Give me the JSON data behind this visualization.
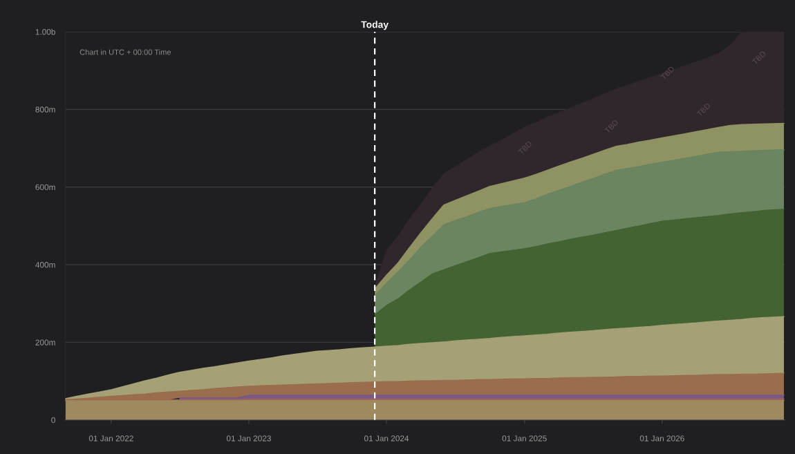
{
  "chart_data": {
    "type": "area",
    "stacked": true,
    "annotations": [
      "Chart in UTC + 00:00 Time",
      "TBD",
      "TBD",
      "TBD",
      "TBD",
      "TBD"
    ],
    "x": [
      "2021-09",
      "2021-10",
      "2021-11",
      "2021-12",
      "2022-01",
      "2022-02",
      "2022-03",
      "2022-04",
      "2022-05",
      "2022-06",
      "2022-07",
      "2022-08",
      "2022-09",
      "2022-10",
      "2022-11",
      "2022-12",
      "2023-01",
      "2023-02",
      "2023-03",
      "2023-04",
      "2023-05",
      "2023-06",
      "2023-07",
      "2023-08",
      "2023-09",
      "2023-10",
      "2023-11",
      "2023-12",
      "2024-01",
      "2024-02",
      "2024-03",
      "2024-04",
      "2024-05",
      "2024-06",
      "2024-07",
      "2024-08",
      "2024-09",
      "2024-10",
      "2024-11",
      "2024-12",
      "2025-01",
      "2025-02",
      "2025-03",
      "2025-04",
      "2025-05",
      "2025-06",
      "2025-07",
      "2025-08",
      "2025-09",
      "2025-10",
      "2025-11",
      "2025-12",
      "2026-01",
      "2026-02",
      "2026-03",
      "2026-04",
      "2026-05",
      "2026-06",
      "2026-07",
      "2026-08",
      "2026-09",
      "2026-10",
      "2026-11-20"
    ],
    "series": [
      {
        "color": "#9e8a5e",
        "values": [
          50000000.0,
          50000000.0,
          50000000.0,
          50000000.0,
          50000000.0,
          50000000.0,
          50000000.0,
          50000000.0,
          50000000.0,
          50000000.0,
          50000000.0,
          50000000.0,
          50000000.0,
          50000000.0,
          50000000.0,
          50000000.0,
          50000000.0,
          50000000.0,
          50000000.0,
          50000000.0,
          50000000.0,
          50000000.0,
          50000000.0,
          50000000.0,
          50000000.0,
          50000000.0,
          50000000.0,
          50000000.0,
          50000000.0,
          50000000.0,
          50000000.0,
          50000000.0,
          50000000.0,
          50000000.0,
          50000000.0,
          50000000.0,
          50000000.0,
          50000000.0,
          50000000.0,
          50000000.0,
          50000000.0,
          50000000.0,
          50000000.0,
          50000000.0,
          50000000.0,
          50000000.0,
          50000000.0,
          50000000.0,
          50000000.0,
          50000000.0,
          50000000.0,
          50000000.0,
          50000000.0,
          50000000.0,
          50000000.0,
          50000000.0,
          50000000.0,
          50000000.0,
          50000000.0,
          50000000.0,
          50000000.0,
          50000000.0,
          50000000.0
        ]
      },
      {
        "color": "#a0645e",
        "values": [
          2000000.0,
          2000000.0,
          2000000.0,
          2000000.0,
          2000000.0,
          2000000.0,
          2000000.0,
          2000000.0,
          2000000.0,
          2000000.0,
          2000000.0,
          2000000.0,
          2000000.0,
          2000000.0,
          2000000.0,
          2000000.0,
          4000000.0,
          4000000.0,
          4000000.0,
          4000000.0,
          4000000.0,
          4000000.0,
          4000000.0,
          4000000.0,
          4000000.0,
          4000000.0,
          4000000.0,
          4000000.0,
          4000000.0,
          4000000.0,
          4000000.0,
          4000000.0,
          4000000.0,
          4000000.0,
          4000000.0,
          4000000.0,
          4000000.0,
          4000000.0,
          4000000.0,
          4000000.0,
          4000000.0,
          4000000.0,
          4000000.0,
          4000000.0,
          4000000.0,
          4000000.0,
          4000000.0,
          4000000.0,
          4000000.0,
          4000000.0,
          4000000.0,
          4000000.0,
          4000000.0,
          4000000.0,
          4000000.0,
          4000000.0,
          4000000.0,
          4000000.0,
          4000000.0,
          4000000.0,
          4000000.0,
          4000000.0,
          4000000.0
        ]
      },
      {
        "color": "#7a5a80",
        "values": [
          null,
          null,
          null,
          null,
          null,
          null,
          null,
          null,
          null,
          null,
          5000000.0,
          5000000.0,
          5000000.0,
          5000000.0,
          5000000.0,
          5000000.0,
          10000000.0,
          10000000.0,
          10000000.0,
          10000000.0,
          10000000.0,
          10000000.0,
          10000000.0,
          10000000.0,
          10000000.0,
          10000000.0,
          10000000.0,
          10000000.0,
          10000000.0,
          10000000.0,
          10000000.0,
          10000000.0,
          10000000.0,
          10000000.0,
          10000000.0,
          10000000.0,
          10000000.0,
          10000000.0,
          10000000.0,
          10000000.0,
          10000000.0,
          10000000.0,
          10000000.0,
          10000000.0,
          10000000.0,
          10000000.0,
          10000000.0,
          10000000.0,
          10000000.0,
          10000000.0,
          10000000.0,
          10000000.0,
          10000000.0,
          10000000.0,
          10000000.0,
          10000000.0,
          10000000.0,
          10000000.0,
          10000000.0,
          10000000.0,
          10000000.0,
          10000000.0,
          10000000.0
        ]
      },
      {
        "color": "#9a6e4c",
        "values": [
          0,
          2000000.0,
          4000000.0,
          7000000.0,
          9000000.0,
          11000000.0,
          13000000.0,
          15000000.0,
          18000000.0,
          20000000.0,
          17000000.0,
          19000000.0,
          21000000.0,
          24000000.0,
          26000000.0,
          28000000.0,
          23000000.0,
          24000000.0,
          25000000.0,
          26000000.0,
          27000000.0,
          28000000.0,
          29000000.0,
          30000000.0,
          31000000.0,
          32000000.0,
          33000000.0,
          34000000.0,
          35000000.0,
          35000000.0,
          36000000.0,
          37000000.0,
          37000000.0,
          38000000.0,
          38000000.0,
          39000000.0,
          40000000.0,
          40000000.0,
          41000000.0,
          42000000.0,
          42000000.0,
          43000000.0,
          43000000.0,
          44000000.0,
          45000000.0,
          45000000.0,
          46000000.0,
          46000000.0,
          47000000.0,
          48000000.0,
          48000000.0,
          49000000.0,
          49000000.0,
          50000000.0,
          51000000.0,
          51000000.0,
          52000000.0,
          53000000.0,
          53000000.0,
          54000000.0,
          54000000.0,
          55000000.0,
          56000000.0
        ]
      },
      {
        "color": "#a5a076",
        "values": [
          3000000.0,
          7000000.0,
          11000000.0,
          13000000.0,
          17000000.0,
          23000000.0,
          28000000.0,
          34000000.0,
          38000000.0,
          44000000.0,
          49000000.0,
          52000000.0,
          55000000.0,
          56000000.0,
          59000000.0,
          62000000.0,
          65000000.0,
          68000000.0,
          71000000.0,
          75000000.0,
          78000000.0,
          81000000.0,
          84000000.0,
          85000000.0,
          86000000.0,
          88000000.0,
          89000000.0,
          90000000.0,
          91000000.0,
          93000000.0,
          95000000.0,
          96000000.0,
          98000000.0,
          99000000.0,
          102000000.0,
          103000000.0,
          104000000.0,
          106000000.0,
          108000000.0,
          109000000.0,
          111000000.0,
          112000000.0,
          114000000.0,
          116000000.0,
          117000000.0,
          119000000.0,
          120000000.0,
          123000000.0,
          124000000.0,
          125000000.0,
          127000000.0,
          128000000.0,
          131000000.0,
          132000000.0,
          133000000.0,
          135000000.0,
          137000000.0,
          138000000.0,
          140000000.0,
          141000000.0,
          144000000.0,
          145000000.0,
          146000000.0
        ]
      },
      {
        "color": "#436332",
        "values": [
          null,
          null,
          null,
          null,
          null,
          null,
          null,
          null,
          null,
          null,
          null,
          null,
          null,
          null,
          null,
          null,
          null,
          null,
          null,
          null,
          null,
          null,
          null,
          null,
          null,
          null,
          null,
          83000000.0,
          105000000.0,
          120000000.0,
          139000000.0,
          158000000.0,
          177000000.0,
          186000000.0,
          193000000.0,
          202000000.0,
          210000000.0,
          219000000.0,
          220000000.0,
          222000000.0,
          224000000.0,
          228000000.0,
          232000000.0,
          235000000.0,
          239000000.0,
          243000000.0,
          246000000.0,
          249000000.0,
          253000000.0,
          257000000.0,
          261000000.0,
          265000000.0,
          268000000.0,
          269000000.0,
          270000000.0,
          271000000.0,
          271000000.0,
          272000000.0,
          274000000.0,
          275000000.0,
          275000000.0,
          276000000.0,
          277000000.0
        ]
      },
      {
        "color": "#6b8560",
        "values": [
          null,
          null,
          null,
          null,
          null,
          null,
          null,
          null,
          null,
          null,
          null,
          null,
          null,
          null,
          null,
          null,
          null,
          null,
          null,
          null,
          null,
          null,
          null,
          null,
          null,
          null,
          null,
          49000000.0,
          57000000.0,
          70000000.0,
          77000000.0,
          90000000.0,
          97000000.0,
          116000000.0,
          117000000.0,
          116000000.0,
          117000000.0,
          116000000.0,
          117000000.0,
          118000000.0,
          119000000.0,
          123000000.0,
          128000000.0,
          132000000.0,
          136000000.0,
          141000000.0,
          146000000.0,
          151000000.0,
          155000000.0,
          154000000.0,
          153000000.0,
          153000000.0,
          152000000.0,
          154000000.0,
          156000000.0,
          158000000.0,
          161000000.0,
          163000000.0,
          160000000.0,
          158000000.0,
          157000000.0,
          155000000.0,
          153000000.0
        ]
      },
      {
        "color": "#8f9262",
        "values": [
          null,
          null,
          null,
          null,
          null,
          null,
          null,
          null,
          null,
          null,
          null,
          null,
          null,
          null,
          null,
          null,
          null,
          null,
          null,
          null,
          null,
          null,
          null,
          null,
          null,
          null,
          null,
          18000000.0,
          21000000.0,
          23000000.0,
          32000000.0,
          37000000.0,
          45000000.0,
          51000000.0,
          52000000.0,
          54000000.0,
          55000000.0,
          57000000.0,
          59000000.0,
          61000000.0,
          63000000.0,
          63000000.0,
          62000000.0,
          63000000.0,
          63000000.0,
          62000000.0,
          62000000.0,
          62000000.0,
          62000000.0,
          62000000.0,
          63000000.0,
          62000000.0,
          63000000.0,
          63000000.0,
          63000000.0,
          64000000.0,
          63000000.0,
          64000000.0,
          68000000.0,
          69000000.0,
          68000000.0,
          68000000.0,
          68000000.0
        ]
      },
      {
        "color": "#30272c",
        "values": [
          null,
          null,
          null,
          null,
          null,
          null,
          null,
          null,
          null,
          null,
          null,
          null,
          null,
          null,
          null,
          null,
          null,
          null,
          null,
          null,
          null,
          null,
          null,
          null,
          null,
          null,
          null,
          5000000.0,
          63000000.0,
          68000000.0,
          73000000.0,
          72000000.0,
          78000000.0,
          80000000.0,
          86000000.0,
          92000000.0,
          100000000.0,
          103000000.0,
          111000000.0,
          121000000.0,
          131000000.0,
          133000000.0,
          136000000.0,
          137000000.0,
          139000000.0,
          141000000.0,
          143000000.0,
          145000000.0,
          147000000.0,
          152000000.0,
          156000000.0,
          161000000.0,
          165000000.0,
          170000000.0,
          175000000.0,
          179000000.0,
          184000000.0,
          191000000.0,
          206000000.0,
          239000000.0,
          238000000.0,
          237000000.0,
          236000000.0
        ]
      }
    ],
    "xlim": [
      "2021-09-01",
      "2026-11-22"
    ],
    "xticks": [
      {
        "value": "2022-01-01",
        "label": "01 Jan 2022"
      },
      {
        "value": "2023-01-01",
        "label": "01 Jan 2023"
      },
      {
        "value": "2024-01-01",
        "label": "01 Jan 2024"
      },
      {
        "value": "2025-01-01",
        "label": "01 Jan 2025"
      },
      {
        "value": "2026-01-01",
        "label": "01 Jan 2026"
      }
    ],
    "ylim": [
      0,
      1000000000
    ],
    "yticks": [
      0,
      {
        "value": 200000000,
        "label": "200m"
      },
      {
        "value": 400000000,
        "label": "400m"
      },
      {
        "value": 600000000,
        "label": "600m"
      },
      {
        "value": 800000000,
        "label": "800m"
      },
      {
        "value": 1000000000,
        "label": "1.00b"
      }
    ],
    "grid": "y",
    "ref_lines": [
      {
        "axis": "x",
        "value": "2023-12-01",
        "label": "Today",
        "color": "#ffffff",
        "line_style": "dashed"
      }
    ]
  }
}
